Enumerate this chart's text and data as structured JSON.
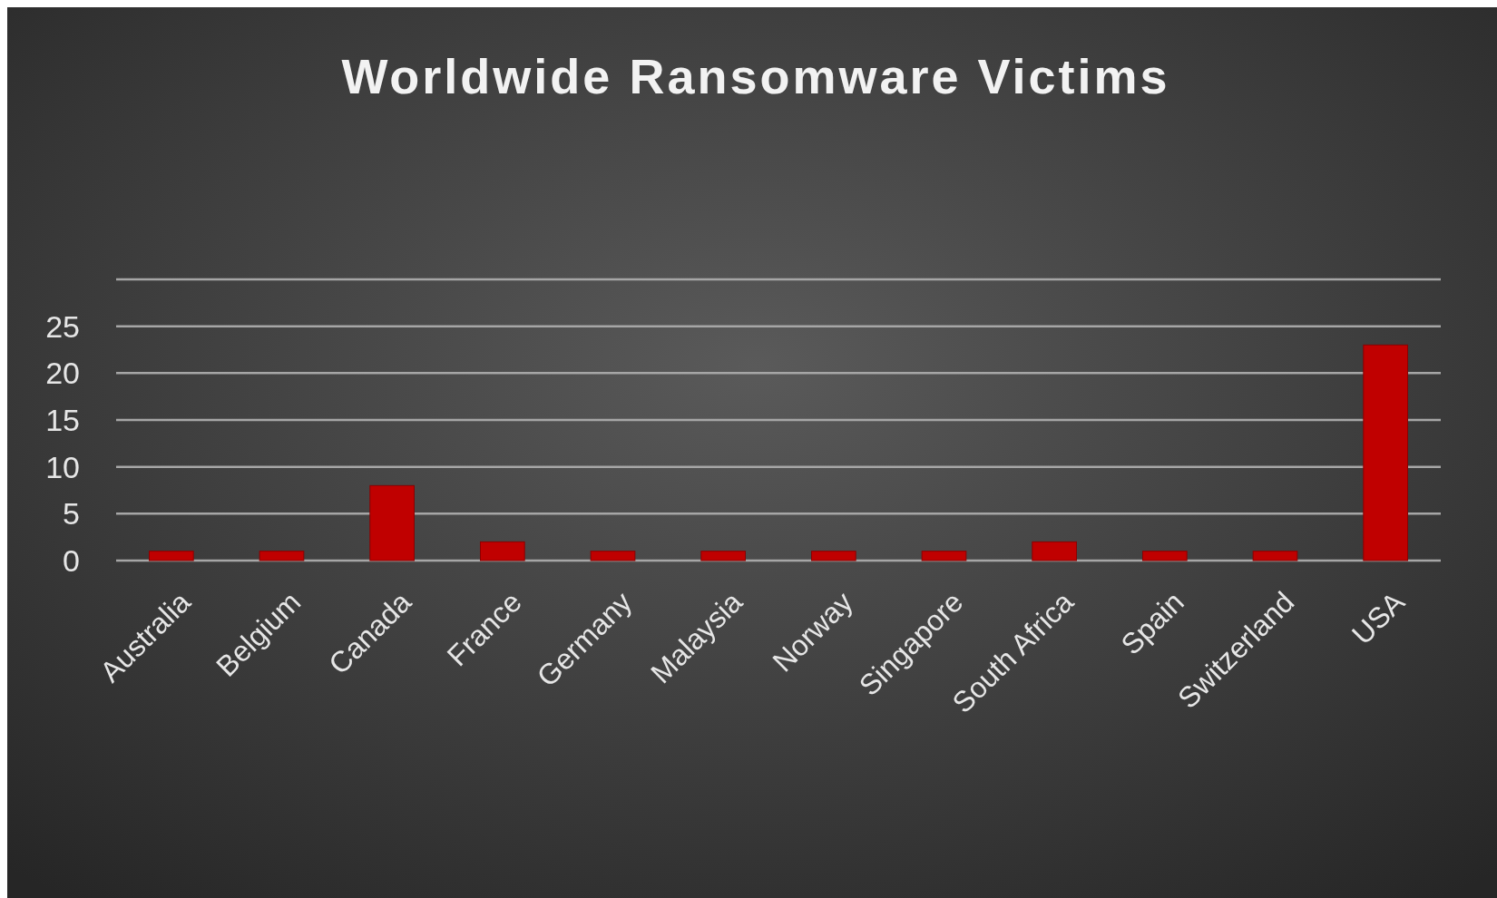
{
  "chart_data": {
    "type": "bar",
    "title": "Worldwide Ransomware Victims",
    "categories": [
      "Australia",
      "Belgium",
      "Canada",
      "France",
      "Germany",
      "Malaysia",
      "Norway",
      "Singapore",
      "South Africa",
      "Spain",
      "Switzerland",
      "USA"
    ],
    "values": [
      1,
      1,
      8,
      2,
      1,
      1,
      1,
      1,
      2,
      1,
      1,
      23
    ],
    "color": "#c00000",
    "ylim": [
      0,
      30
    ],
    "yticks": [
      0,
      5,
      10,
      15,
      20,
      25,
      {
        "value": 30,
        "label": null
      }
    ],
    "grid": true
  }
}
